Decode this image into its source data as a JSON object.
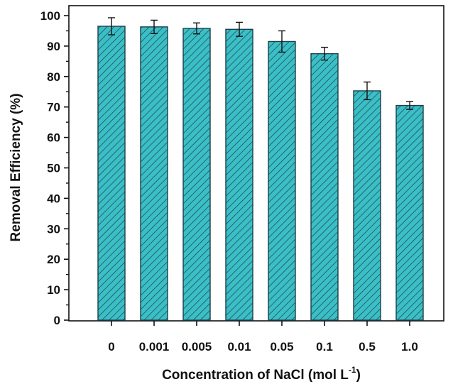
{
  "chart_data": {
    "type": "bar",
    "categories": [
      "0",
      "0.001",
      "0.005",
      "0.01",
      "0.05",
      "0.1",
      "0.5",
      "1.0"
    ],
    "values": [
      96.5,
      96.3,
      95.8,
      95.5,
      91.5,
      87.5,
      75.3,
      70.5
    ],
    "errors": [
      2.8,
      2.2,
      1.8,
      2.3,
      3.5,
      2.1,
      2.9,
      1.3
    ],
    "xlabel_main": "Concentration of NaCl (mol L",
    "xlabel_sup": "-1",
    "xlabel_close": ")",
    "ylabel": "Removal Efficiency (%)",
    "ylim": [
      0,
      100
    ],
    "yticks": [
      "0",
      "10",
      "20",
      "30",
      "40",
      "50",
      "60",
      "70",
      "80",
      "90",
      "100"
    ],
    "bar_fill": "#3bbfc6",
    "hatch_color": "#1b3f49",
    "grid": false,
    "legend": "none"
  }
}
